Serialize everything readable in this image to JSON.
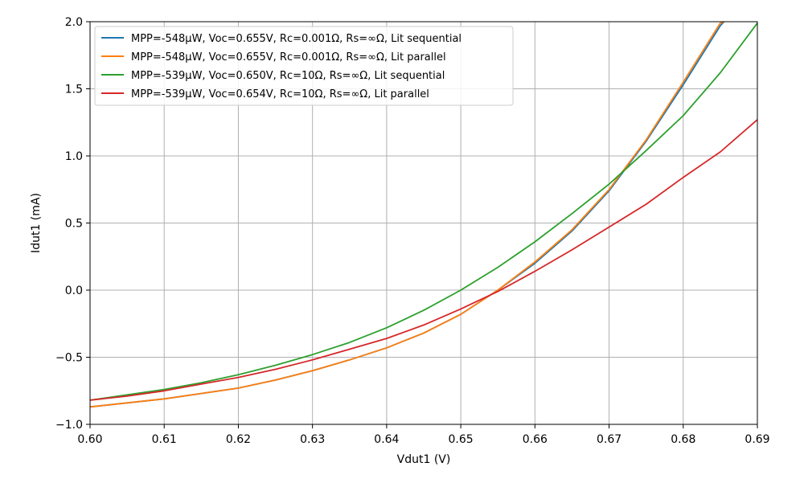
{
  "chart_data": {
    "type": "line",
    "title": "",
    "xlabel": "Vdut1 (V)",
    "ylabel": "Idut1 (mA)",
    "xlim": [
      0.6,
      0.69
    ],
    "ylim": [
      -1.0,
      2.0
    ],
    "xticks": [
      0.6,
      0.61,
      0.62,
      0.63,
      0.64,
      0.65,
      0.66,
      0.67,
      0.68,
      0.69
    ],
    "xtick_labels": [
      "0.60",
      "0.61",
      "0.62",
      "0.63",
      "0.64",
      "0.65",
      "0.66",
      "0.67",
      "0.68",
      "0.69"
    ],
    "yticks": [
      -1.0,
      -0.5,
      0.0,
      0.5,
      1.0,
      1.5,
      2.0
    ],
    "ytick_labels": [
      "−1.0",
      "−0.5",
      "0.0",
      "0.5",
      "1.0",
      "1.5",
      "2.0"
    ],
    "grid": true,
    "legend_position": "top-left",
    "series": [
      {
        "name": "MPP=-548µW, Voc=0.655V, Rc=0.001Ω, Rs=∞Ω, Lit sequential",
        "color": "#1f77b4",
        "x": [
          0.6,
          0.605,
          0.61,
          0.615,
          0.62,
          0.625,
          0.63,
          0.635,
          0.64,
          0.645,
          0.65,
          0.655,
          0.66,
          0.665,
          0.67,
          0.675,
          0.68,
          0.685,
          0.6855
        ],
        "y": [
          -0.87,
          -0.84,
          -0.81,
          -0.77,
          -0.73,
          -0.67,
          -0.6,
          -0.52,
          -0.43,
          -0.32,
          -0.18,
          0.0,
          0.2,
          0.44,
          0.74,
          1.11,
          1.53,
          1.97,
          2.0
        ]
      },
      {
        "name": "MPP=-548µW, Voc=0.655V, Rc=0.001Ω, Rs=∞Ω, Lit parallel",
        "color": "#ff7f0e",
        "x": [
          0.6,
          0.605,
          0.61,
          0.615,
          0.62,
          0.625,
          0.63,
          0.635,
          0.64,
          0.645,
          0.65,
          0.655,
          0.66,
          0.665,
          0.67,
          0.675,
          0.68,
          0.685,
          0.6855
        ],
        "y": [
          -0.87,
          -0.84,
          -0.81,
          -0.77,
          -0.73,
          -0.67,
          -0.6,
          -0.52,
          -0.43,
          -0.32,
          -0.18,
          0.0,
          0.21,
          0.45,
          0.75,
          1.12,
          1.55,
          1.99,
          2.0
        ]
      },
      {
        "name": "MPP=-539µW, Voc=0.650V, Rc=10Ω, Rs=∞Ω, Lit sequential",
        "color": "#2ca02c",
        "x": [
          0.6,
          0.605,
          0.61,
          0.615,
          0.62,
          0.625,
          0.63,
          0.635,
          0.64,
          0.645,
          0.65,
          0.655,
          0.66,
          0.665,
          0.67,
          0.675,
          0.68,
          0.685,
          0.69
        ],
        "y": [
          -0.82,
          -0.78,
          -0.74,
          -0.69,
          -0.63,
          -0.56,
          -0.48,
          -0.39,
          -0.28,
          -0.15,
          0.0,
          0.17,
          0.36,
          0.57,
          0.79,
          1.04,
          1.3,
          1.62,
          1.99
        ]
      },
      {
        "name": "MPP=-539µW, Voc=0.654V, Rc=10Ω, Rs=∞Ω, Lit parallel",
        "color": "#d62728",
        "x": [
          0.6,
          0.605,
          0.61,
          0.615,
          0.62,
          0.625,
          0.63,
          0.635,
          0.64,
          0.645,
          0.65,
          0.655,
          0.66,
          0.665,
          0.67,
          0.675,
          0.68,
          0.685,
          0.69
        ],
        "y": [
          -0.82,
          -0.79,
          -0.75,
          -0.7,
          -0.65,
          -0.59,
          -0.52,
          -0.44,
          -0.36,
          -0.26,
          -0.14,
          -0.01,
          0.14,
          0.3,
          0.47,
          0.64,
          0.84,
          1.03,
          1.27
        ]
      }
    ]
  }
}
